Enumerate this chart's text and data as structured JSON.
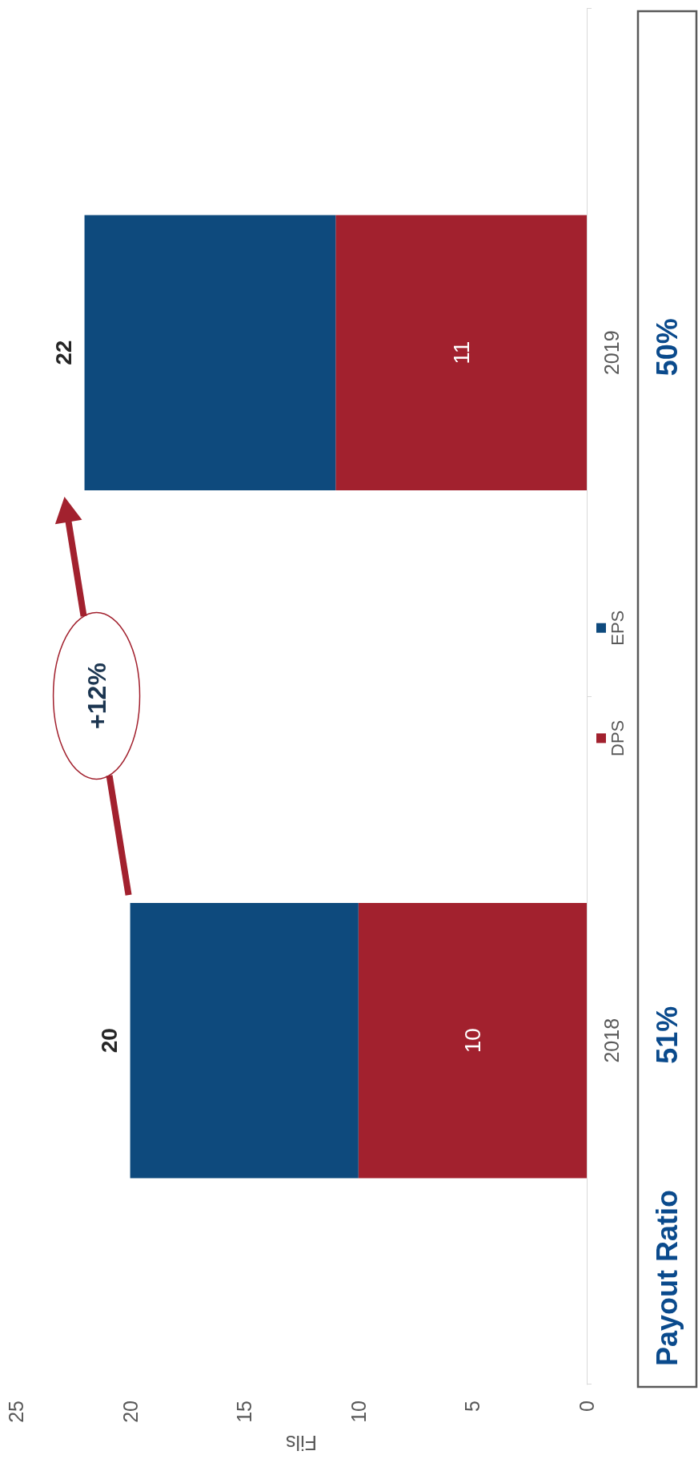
{
  "chart_data": {
    "type": "bar",
    "orientation": "horizontal",
    "stacked": true,
    "categories": [
      "2019",
      "2018"
    ],
    "series": [
      {
        "name": "DPS",
        "color": "#a2212e",
        "values": [
          11,
          10
        ],
        "value_labels": [
          "11",
          "10"
        ]
      },
      {
        "name": "EPS",
        "color": "#0e4a7d",
        "values": [
          11,
          10
        ]
      }
    ],
    "totals": [
      "22",
      "20"
    ],
    "xlabel": "Fils",
    "xlim": [
      25,
      0
    ],
    "xticks": [
      0,
      5,
      10,
      15,
      20,
      25
    ],
    "grid": false,
    "legend": "right",
    "annotations": [
      "+12%",
      "Payout Ratio",
      "50%",
      "51%"
    ]
  }
}
